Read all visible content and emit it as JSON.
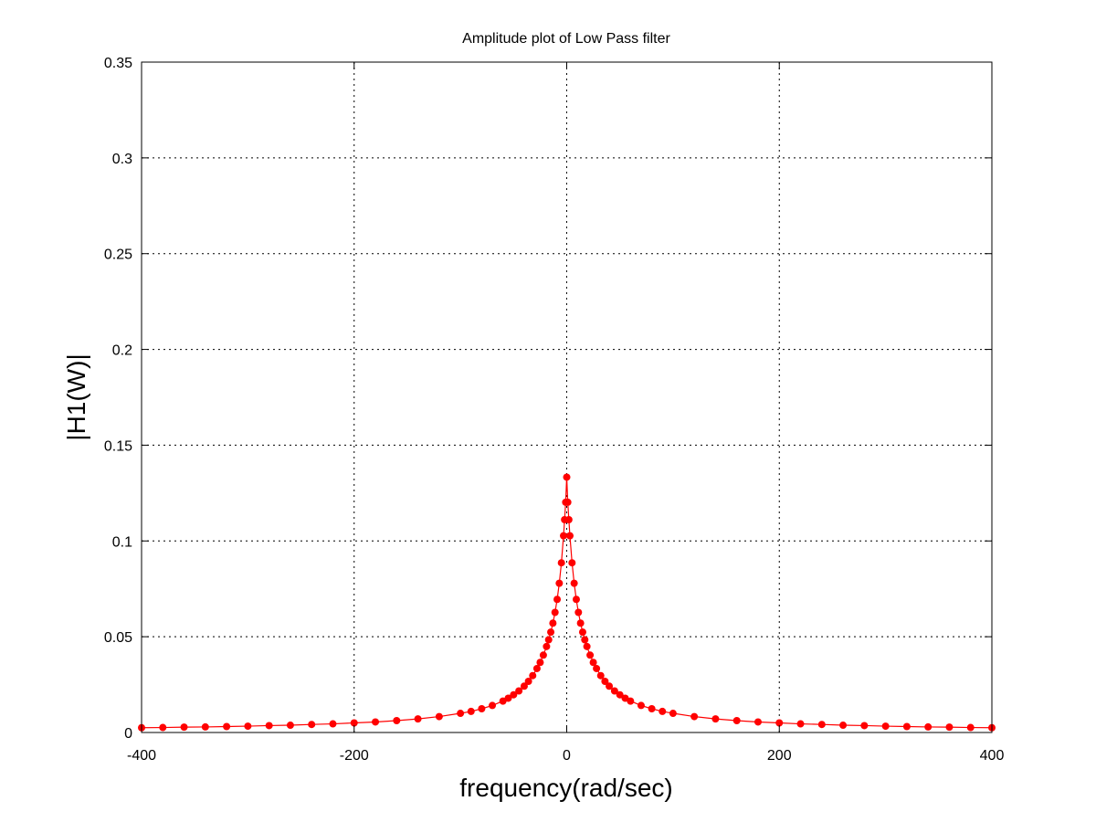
{
  "chart_data": {
    "type": "line",
    "title": "Amplitude plot of Low Pass filter",
    "xlabel": "frequency(rad/sec)",
    "ylabel": "|H1(W)|",
    "xlim": [
      -400,
      400
    ],
    "ylim": [
      0,
      0.35
    ],
    "xticks": [
      -400,
      -200,
      0,
      200,
      400
    ],
    "xtick_labels": [
      "-400",
      "-200",
      "0",
      "200",
      "400"
    ],
    "yticks": [
      0,
      0.05,
      0.1,
      0.15,
      0.2,
      0.25,
      0.3,
      0.35
    ],
    "ytick_labels": [
      "0",
      "0.05",
      "0.1",
      "0.15",
      "0.2",
      "0.25",
      "0.3",
      "0.35"
    ],
    "grid": true,
    "series": [
      {
        "color": "#ff0000",
        "marker": "circle",
        "x": [
          -400,
          -380,
          -360,
          -340,
          -320,
          -300,
          -280,
          -260,
          -240,
          -220,
          -200,
          -180,
          -160,
          -140,
          -120,
          -100,
          -90,
          -80,
          -70,
          -60,
          -55,
          -50,
          -45,
          -40,
          -36,
          -32,
          -28,
          -25,
          -22,
          -19,
          -17,
          -15,
          -13,
          -11,
          -9,
          -7,
          -5,
          -3,
          -2,
          -1,
          0,
          1,
          2,
          3,
          5,
          7,
          9,
          11,
          13,
          15,
          17,
          19,
          22,
          25,
          28,
          32,
          36,
          40,
          45,
          50,
          55,
          60,
          70,
          80,
          90,
          100,
          120,
          140,
          160,
          180,
          200,
          220,
          240,
          260,
          280,
          300,
          320,
          340,
          360,
          380,
          400
        ],
        "y": [
          0.0025,
          0.0026,
          0.0028,
          0.0029,
          0.0031,
          0.0033,
          0.0036,
          0.0038,
          0.0042,
          0.0045,
          0.005,
          0.0055,
          0.0062,
          0.0071,
          0.0083,
          0.01,
          0.011,
          0.0124,
          0.0141,
          0.0164,
          0.0179,
          0.0197,
          0.0217,
          0.0242,
          0.0267,
          0.0297,
          0.0334,
          0.0366,
          0.0404,
          0.0449,
          0.0484,
          0.0524,
          0.0571,
          0.0627,
          0.0695,
          0.0779,
          0.0886,
          0.1027,
          0.1111,
          0.1202,
          0.1333,
          0.1202,
          0.1111,
          0.1027,
          0.0886,
          0.0779,
          0.0695,
          0.0627,
          0.0571,
          0.0524,
          0.0484,
          0.0449,
          0.0404,
          0.0366,
          0.0334,
          0.0297,
          0.0267,
          0.0242,
          0.0217,
          0.0197,
          0.0179,
          0.0164,
          0.0141,
          0.0124,
          0.011,
          0.01,
          0.0083,
          0.0071,
          0.0062,
          0.0055,
          0.005,
          0.0045,
          0.0042,
          0.0038,
          0.0036,
          0.0033,
          0.0031,
          0.0029,
          0.0028,
          0.0026,
          0.0025
        ]
      }
    ]
  }
}
